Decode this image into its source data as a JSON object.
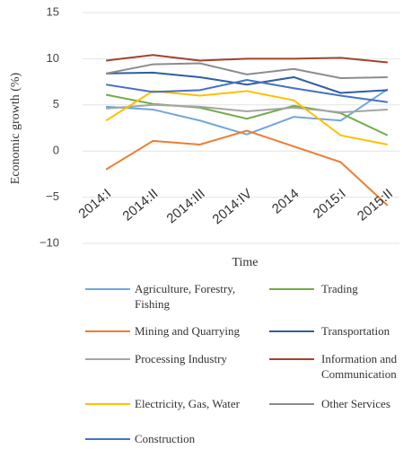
{
  "chart_data": {
    "type": "line",
    "x_label": "Time",
    "y_label": "Economic growth (%)",
    "categories": [
      "2014:I",
      "2014:II",
      "2014:III",
      "2014:IV",
      "2014",
      "2015:I",
      "2015:II"
    ],
    "ylim": [
      -10,
      15
    ],
    "yticks": [
      {
        "value": -10,
        "label": "−10"
      },
      {
        "value": -5,
        "label": "−5"
      },
      0,
      5,
      10,
      15
    ],
    "grid": true,
    "series": [
      {
        "name": "Agriculture, Forestry, Fishing",
        "color": "#6fa8dc",
        "values": [
          4.8,
          4.5,
          3.3,
          1.8,
          3.7,
          3.3,
          6.7
        ]
      },
      {
        "name": "Trading",
        "color": "#70ad47",
        "values": [
          6.1,
          5.1,
          4.7,
          3.5,
          4.9,
          4.1,
          1.7
        ]
      },
      {
        "name": "Mining and Quarrying",
        "color": "#ed7d31",
        "values": [
          -2.0,
          1.1,
          0.7,
          2.2,
          0.5,
          -1.2,
          -5.9
        ]
      },
      {
        "name": "Transportation",
        "color": "#2e5fa1",
        "values": [
          8.4,
          8.5,
          8.0,
          7.2,
          8.0,
          6.3,
          6.6
        ]
      },
      {
        "name": "Processing Industry",
        "color": "#a5a5a5",
        "values": [
          4.6,
          5.0,
          4.8,
          4.3,
          4.7,
          4.2,
          4.5
        ]
      },
      {
        "name": "Information and Communication",
        "color": "#a0432a",
        "values": [
          9.8,
          10.4,
          9.8,
          10.0,
          10.0,
          10.1,
          9.6
        ]
      },
      {
        "name": "Electricity, Gas, Water",
        "color": "#ffc000",
        "values": [
          3.3,
          6.5,
          6.0,
          6.5,
          5.5,
          1.7,
          0.7
        ]
      },
      {
        "name": "Other Services",
        "color": "#8c8c8c",
        "values": [
          8.4,
          9.4,
          9.5,
          8.3,
          8.9,
          7.9,
          8.0
        ]
      },
      {
        "name": "Construction",
        "color": "#4472c4",
        "values": [
          7.2,
          6.4,
          6.6,
          7.7,
          6.8,
          6.0,
          5.3
        ]
      }
    ]
  }
}
